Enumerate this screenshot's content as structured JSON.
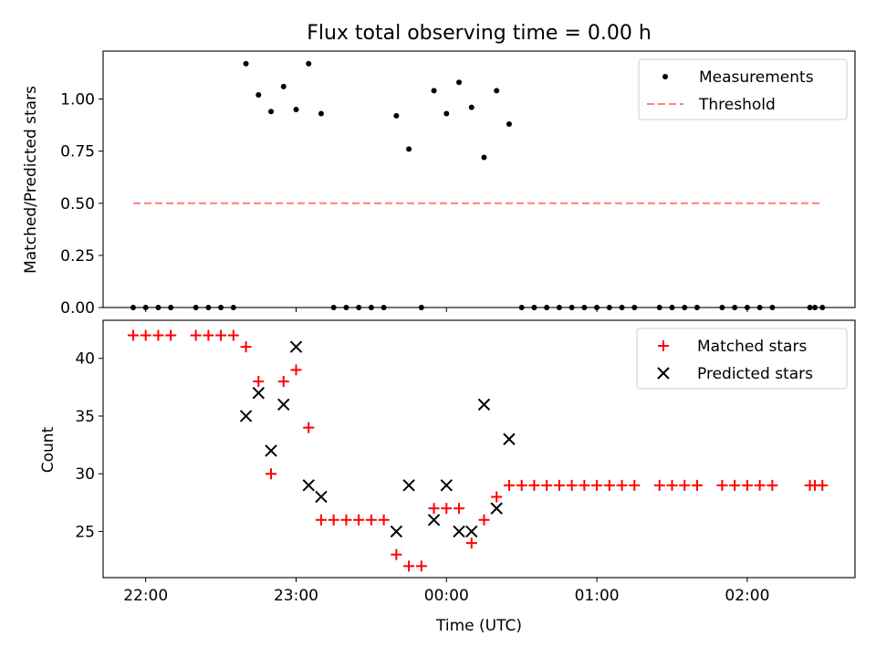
{
  "chart_data": [
    {
      "type": "scatter",
      "title": "Flux total observing time = 0.00 h",
      "xlabel": "",
      "ylabel": "Matched/Predicted stars",
      "xlim": [
        "21:43",
        "02:43"
      ],
      "ylim": [
        0.0,
        1.23
      ],
      "yticks": [
        0.0,
        0.25,
        0.5,
        0.75,
        1.0
      ],
      "ytick_labels": [
        "0.00",
        "0.25",
        "0.50",
        "0.75",
        "1.00"
      ],
      "legend_position": "top-right",
      "series": [
        {
          "name": "Measurements",
          "color": "#000000",
          "marker": "dot",
          "points": [
            [
              "21:55",
              0.0
            ],
            [
              "22:00",
              0.0
            ],
            [
              "22:05",
              0.0
            ],
            [
              "22:10",
              0.0
            ],
            [
              "22:20",
              0.0
            ],
            [
              "22:25",
              0.0
            ],
            [
              "22:30",
              0.0
            ],
            [
              "22:35",
              0.0
            ],
            [
              "22:40",
              1.17
            ],
            [
              "22:45",
              1.02
            ],
            [
              "22:50",
              0.94
            ],
            [
              "22:55",
              1.06
            ],
            [
              "23:00",
              0.95
            ],
            [
              "23:05",
              1.17
            ],
            [
              "23:10",
              0.93
            ],
            [
              "23:15",
              0.0
            ],
            [
              "23:20",
              0.0
            ],
            [
              "23:25",
              0.0
            ],
            [
              "23:30",
              0.0
            ],
            [
              "23:35",
              0.0
            ],
            [
              "23:40",
              0.92
            ],
            [
              "23:45",
              0.76
            ],
            [
              "23:50",
              0.0
            ],
            [
              "23:55",
              1.04
            ],
            [
              "00:00",
              0.93
            ],
            [
              "00:05",
              1.08
            ],
            [
              "00:10",
              0.96
            ],
            [
              "00:15",
              0.72
            ],
            [
              "00:20",
              1.04
            ],
            [
              "00:25",
              0.88
            ],
            [
              "00:30",
              0.0
            ],
            [
              "00:35",
              0.0
            ],
            [
              "00:40",
              0.0
            ],
            [
              "00:45",
              0.0
            ],
            [
              "00:50",
              0.0
            ],
            [
              "00:55",
              0.0
            ],
            [
              "01:00",
              0.0
            ],
            [
              "01:05",
              0.0
            ],
            [
              "01:10",
              0.0
            ],
            [
              "01:15",
              0.0
            ],
            [
              "01:25",
              0.0
            ],
            [
              "01:30",
              0.0
            ],
            [
              "01:35",
              0.0
            ],
            [
              "01:40",
              0.0
            ],
            [
              "01:50",
              0.0
            ],
            [
              "01:55",
              0.0
            ],
            [
              "02:00",
              0.0
            ],
            [
              "02:05",
              0.0
            ],
            [
              "02:10",
              0.0
            ],
            [
              "02:25",
              0.0
            ],
            [
              "02:27",
              0.0
            ],
            [
              "02:30",
              0.0
            ]
          ]
        },
        {
          "name": "Threshold",
          "color": "#ff7f7f",
          "marker": "dashed-line",
          "points": [
            [
              "21:55",
              0.5
            ],
            [
              "02:30",
              0.5
            ]
          ]
        }
      ]
    },
    {
      "type": "scatter",
      "title": "",
      "xlabel": "Time (UTC)",
      "ylabel": "Count",
      "xlim": [
        "21:43",
        "02:43"
      ],
      "ylim": [
        21.0,
        43.3
      ],
      "yticks": [
        25,
        30,
        35,
        40
      ],
      "ytick_labels": [
        "25",
        "30",
        "35",
        "40"
      ],
      "xticks": [
        "22:00",
        "23:00",
        "00:00",
        "01:00",
        "02:00"
      ],
      "legend_position": "top-right",
      "series": [
        {
          "name": "Matched stars",
          "color": "#ff0000",
          "marker": "plus",
          "points": [
            [
              "21:55",
              42
            ],
            [
              "22:00",
              42
            ],
            [
              "22:05",
              42
            ],
            [
              "22:10",
              42
            ],
            [
              "22:20",
              42
            ],
            [
              "22:25",
              42
            ],
            [
              "22:30",
              42
            ],
            [
              "22:35",
              42
            ],
            [
              "22:40",
              41
            ],
            [
              "22:45",
              38
            ],
            [
              "22:50",
              30
            ],
            [
              "22:55",
              38
            ],
            [
              "23:00",
              39
            ],
            [
              "23:05",
              34
            ],
            [
              "23:10",
              26
            ],
            [
              "23:15",
              26
            ],
            [
              "23:20",
              26
            ],
            [
              "23:25",
              26
            ],
            [
              "23:30",
              26
            ],
            [
              "23:35",
              26
            ],
            [
              "23:40",
              23
            ],
            [
              "23:45",
              22
            ],
            [
              "23:50",
              22
            ],
            [
              "23:55",
              27
            ],
            [
              "00:00",
              27
            ],
            [
              "00:05",
              27
            ],
            [
              "00:10",
              24
            ],
            [
              "00:15",
              26
            ],
            [
              "00:20",
              28
            ],
            [
              "00:25",
              29
            ],
            [
              "00:30",
              29
            ],
            [
              "00:35",
              29
            ],
            [
              "00:40",
              29
            ],
            [
              "00:45",
              29
            ],
            [
              "00:50",
              29
            ],
            [
              "00:55",
              29
            ],
            [
              "01:00",
              29
            ],
            [
              "01:05",
              29
            ],
            [
              "01:10",
              29
            ],
            [
              "01:15",
              29
            ],
            [
              "01:25",
              29
            ],
            [
              "01:30",
              29
            ],
            [
              "01:35",
              29
            ],
            [
              "01:40",
              29
            ],
            [
              "01:50",
              29
            ],
            [
              "01:55",
              29
            ],
            [
              "02:00",
              29
            ],
            [
              "02:05",
              29
            ],
            [
              "02:10",
              29
            ],
            [
              "02:25",
              29
            ],
            [
              "02:27",
              29
            ],
            [
              "02:30",
              29
            ]
          ]
        },
        {
          "name": "Predicted stars",
          "color": "#000000",
          "marker": "x",
          "points": [
            [
              "22:40",
              35
            ],
            [
              "22:45",
              37
            ],
            [
              "22:50",
              32
            ],
            [
              "22:55",
              36
            ],
            [
              "23:00",
              41
            ],
            [
              "23:05",
              29
            ],
            [
              "23:10",
              28
            ],
            [
              "23:40",
              25
            ],
            [
              "23:45",
              29
            ],
            [
              "23:55",
              26
            ],
            [
              "00:00",
              29
            ],
            [
              "00:05",
              25
            ],
            [
              "00:10",
              25
            ],
            [
              "00:15",
              36
            ],
            [
              "00:20",
              27
            ],
            [
              "00:25",
              33
            ]
          ]
        }
      ]
    }
  ]
}
